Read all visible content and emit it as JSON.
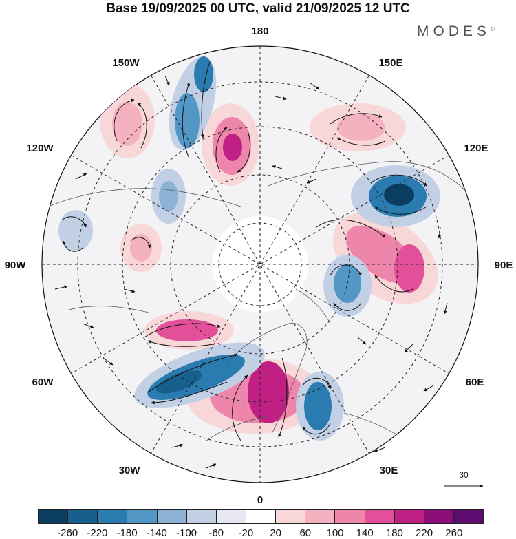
{
  "title": "Base 19/09/2025 00 UTC, valid 21/09/2025 12 UTC",
  "brand": {
    "name": "MODES",
    "mark": "©"
  },
  "labels": {
    "lon180": "180",
    "lon150w": "150W",
    "lon150e": "150E",
    "lon120w": "120W",
    "lon120e": "120E",
    "lon90w": "90W",
    "lon90e": "90E",
    "lon60w": "60W",
    "lon60e": "60E",
    "lon30w": "30W",
    "lon30e": "30E",
    "lon0": "0"
  },
  "vector_ref": "30",
  "colorbar": {
    "colors": [
      "#0b3d60",
      "#175f8d",
      "#2a7bb0",
      "#5397c6",
      "#8cb3d6",
      "#c2d0e6",
      "#e8e8f4",
      "#ffffff",
      "#f8d7d9",
      "#f4b2c0",
      "#ee86ab",
      "#e2509a",
      "#c01f83",
      "#8c0d78",
      "#5b0c6e"
    ],
    "ticks": [
      "-260",
      "-220",
      "-180",
      "-140",
      "-100",
      "-60",
      "-20",
      "20",
      "60",
      "100",
      "140",
      "180",
      "220",
      "260"
    ]
  }
}
